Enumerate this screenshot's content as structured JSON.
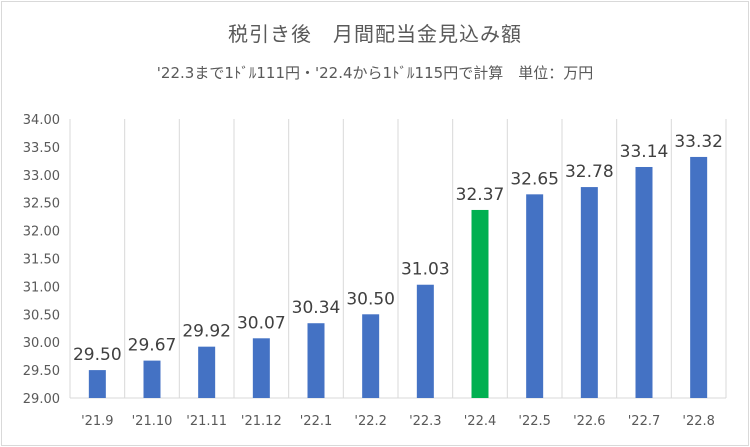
{
  "chart_data": {
    "type": "bar",
    "title": "税引き後　月間配当金見込み額",
    "subtitle": "'22.3まで1ﾄﾞﾙ111円・'22.4から1ﾄﾞﾙ115円で計算　単位：万円",
    "categories": [
      "'21.9",
      "'21.10",
      "'21.11",
      "'21.12",
      "'22.1",
      "'22.2",
      "'22.3",
      "'22.4",
      "'22.5",
      "'22.6",
      "'22.7",
      "'22.8"
    ],
    "values": [
      29.5,
      29.67,
      29.92,
      30.07,
      30.34,
      30.5,
      31.03,
      32.37,
      32.65,
      32.78,
      33.14,
      33.32
    ],
    "value_labels": [
      "29.50",
      "29.67",
      "29.92",
      "30.07",
      "30.34",
      "30.50",
      "31.03",
      "32.37",
      "32.65",
      "32.78",
      "33.14",
      "33.32"
    ],
    "highlight_category": "'22.4",
    "ylim": [
      29.0,
      34.0
    ],
    "yticks": [
      "29.00",
      "29.50",
      "30.00",
      "30.50",
      "31.00",
      "31.50",
      "32.00",
      "32.50",
      "33.00",
      "33.50",
      "34.00"
    ],
    "grid": "vertical",
    "colors": {
      "bar": "#4472c4",
      "highlight": "#00b050",
      "grid": "#d9d9d9"
    }
  }
}
